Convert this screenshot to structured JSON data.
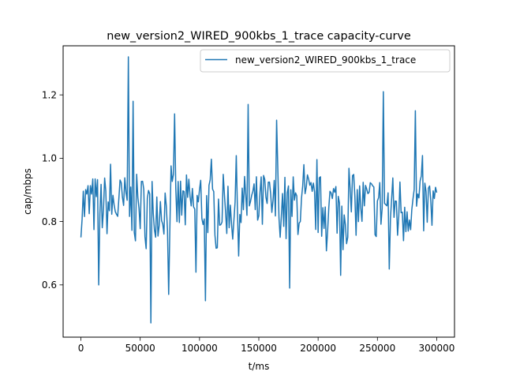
{
  "chart_data": {
    "type": "line",
    "title": "new_version2_WIRED_900kbs_1_trace capacity-curve",
    "xlabel": "t/ms",
    "ylabel": "cap/mbps",
    "xlim": [
      -15000,
      315000
    ],
    "ylim": [
      0.435,
      1.355
    ],
    "x_ticks": [
      0,
      50000,
      100000,
      150000,
      200000,
      250000,
      300000
    ],
    "x_tick_labels": [
      "0",
      "50000",
      "100000",
      "150000",
      "200000",
      "250000",
      "300000"
    ],
    "y_ticks": [
      0.6,
      0.8,
      1.0,
      1.2
    ],
    "y_tick_labels": [
      "0.6",
      "0.8",
      "1.0",
      "1.2"
    ],
    "grid": false,
    "legend_position": "top-right",
    "series": [
      {
        "name": "new_version2_WIRED_900kbs_1_trace",
        "color": "#1f77b4",
        "x_start": 0,
        "x_step": 1000,
        "x_end": 300000,
        "baseline": 0.85,
        "noise_amplitude": 0.1,
        "seed": 7,
        "spikes": [
          {
            "x": 40000,
            "y": 1.32
          },
          {
            "x": 44000,
            "y": 1.18
          },
          {
            "x": 59000,
            "y": 0.48
          },
          {
            "x": 74000,
            "y": 0.57
          },
          {
            "x": 79000,
            "y": 1.14
          },
          {
            "x": 105000,
            "y": 0.55
          },
          {
            "x": 141000,
            "y": 1.17
          },
          {
            "x": 165000,
            "y": 1.12
          },
          {
            "x": 176000,
            "y": 0.59
          },
          {
            "x": 15000,
            "y": 0.6
          },
          {
            "x": 255000,
            "y": 1.21
          },
          {
            "x": 282000,
            "y": 1.15
          },
          {
            "x": 219000,
            "y": 0.63
          },
          {
            "x": 260000,
            "y": 0.65
          },
          {
            "x": 97000,
            "y": 0.64
          }
        ]
      }
    ]
  }
}
